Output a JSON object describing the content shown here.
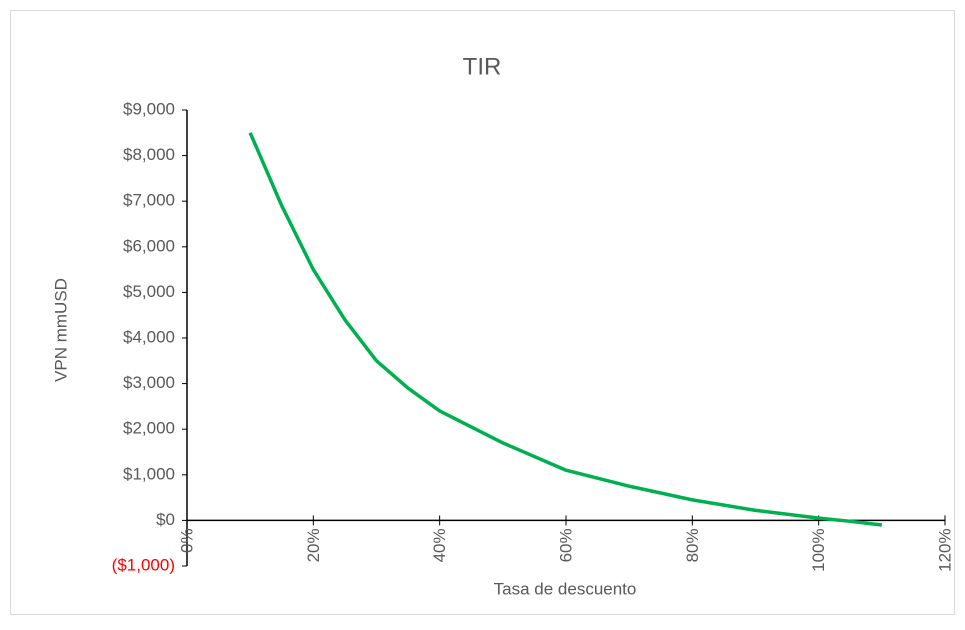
{
  "chart_data": {
    "type": "line",
    "title": "TIR",
    "x_label": "Tasa de descuento",
    "y_label": "VPN mmUSD",
    "series": [
      {
        "name": "VPN",
        "color": "#00b050",
        "x": [
          10,
          15,
          20,
          25,
          30,
          35,
          40,
          50,
          60,
          70,
          80,
          90,
          100,
          105,
          110
        ],
        "values": [
          8500,
          6900,
          5500,
          4400,
          3500,
          2900,
          2400,
          1700,
          1100,
          750,
          450,
          220,
          50,
          -20,
          -100
        ]
      }
    ],
    "xlim": [
      0,
      120
    ],
    "xticks": [
      {
        "value": 0,
        "label": "0%"
      },
      {
        "value": 20,
        "label": "20%"
      },
      {
        "value": 40,
        "label": "40%"
      },
      {
        "value": 60,
        "label": "60%"
      },
      {
        "value": 80,
        "label": "80%"
      },
      {
        "value": 100,
        "label": "100%"
      },
      {
        "value": 120,
        "label": "120%"
      }
    ],
    "ylim": [
      -1000,
      9000
    ],
    "yticks": [
      {
        "value": -1000,
        "label": "($1,000)"
      },
      {
        "value": 0,
        "label": "$0"
      },
      {
        "value": 1000,
        "label": "$1,000"
      },
      {
        "value": 2000,
        "label": "$2,000"
      },
      {
        "value": 3000,
        "label": "$3,000"
      },
      {
        "value": 4000,
        "label": "$4,000"
      },
      {
        "value": 5000,
        "label": "$5,000"
      },
      {
        "value": 6000,
        "label": "$6,000"
      },
      {
        "value": 7000,
        "label": "$7,000"
      },
      {
        "value": 8000,
        "label": "$8,000"
      },
      {
        "value": 9000,
        "label": "$9,000"
      }
    ],
    "negative_label_color": "#ff0000",
    "grid": false
  }
}
